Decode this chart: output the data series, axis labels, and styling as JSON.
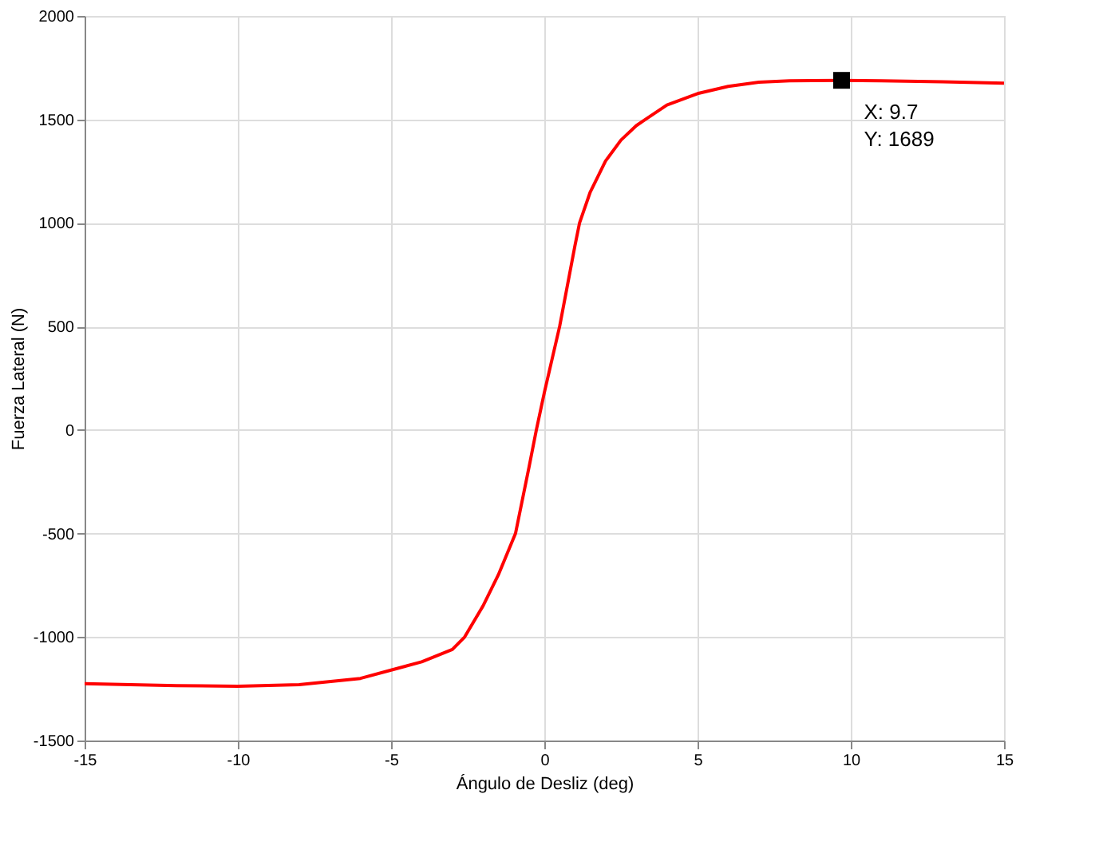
{
  "chart_data": {
    "type": "line",
    "xlabel": "Ángulo de Desliz (deg)",
    "ylabel": "Fuerza Lateral (N)",
    "xlim": [
      -15,
      15
    ],
    "xticks": [
      -15,
      -10,
      -5,
      0,
      5,
      10,
      15
    ],
    "ylim": [
      -1500,
      2000
    ],
    "yticks": [
      -1500,
      -1000,
      -500,
      0,
      500,
      1000,
      1500,
      2000
    ],
    "grid": true,
    "marker": "none",
    "line_style": "solid",
    "series": [
      {
        "color": "#ff0000",
        "x": [
          -15,
          -12,
          -10,
          -8,
          -6,
          -5,
          -4,
          -3,
          -2.6,
          -2,
          -1.5,
          -0.94,
          -0.5,
          -0.26,
          0,
          0.5,
          1,
          1.15,
          1.5,
          2,
          2.5,
          3,
          3.3,
          4,
          5,
          6,
          7,
          8,
          9.7,
          11,
          13,
          15
        ],
        "values": [
          -1225,
          -1235,
          -1238,
          -1230,
          -1200,
          -1160,
          -1120,
          -1060,
          -1000,
          -850,
          -700,
          -500,
          -180,
          0,
          180,
          500,
          890,
          1000,
          1150,
          1300,
          1400,
          1470,
          1500,
          1570,
          1625,
          1660,
          1680,
          1687,
          1689,
          1687,
          1682,
          1675
        ]
      }
    ],
    "annotations": [
      {
        "text": "X: 9.7\nY: 1689",
        "x": 9.7,
        "y": 1689
      }
    ]
  }
}
